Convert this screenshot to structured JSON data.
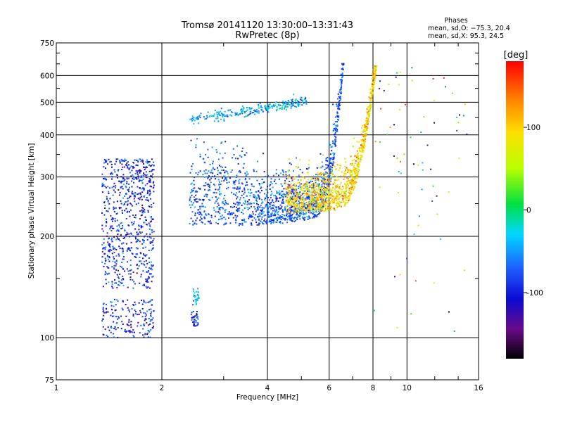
{
  "chart_data": {
    "type": "scatter",
    "title": "Tromsø 20141120 13:30:00–13:31:43",
    "subtitle": "RwPretec (8p)",
    "xlabel": "Frequency [MHz]",
    "ylabel": "Stationary phase Virtual Height [km]",
    "x_scale": "log2",
    "y_scale": "log",
    "xlim": [
      1,
      16
    ],
    "ylim": [
      75,
      750
    ],
    "x_ticks": [
      1,
      2,
      4,
      6,
      8,
      10,
      16
    ],
    "y_ticks": [
      75,
      100,
      200,
      300,
      400,
      500,
      600,
      750
    ],
    "grid": true,
    "colorbar": {
      "label": "[deg]",
      "range": [
        -180,
        180
      ],
      "ticks": [
        100,
        0,
        -100
      ],
      "colors": [
        "#000000",
        "#6a0a8a",
        "#0a0ad0",
        "#1f5bff",
        "#00d8ff",
        "#00e040",
        "#b8ff00",
        "#ffe000",
        "#ff7a00",
        "#ff0000"
      ]
    },
    "stats": {
      "heading": "Phases",
      "line_o": "mean, sd,O: −75.3, 20.4",
      "line_x": "mean, sd,X:  95.3, 24.5",
      "o_mode": {
        "mean": -75.3,
        "sd": 20.4
      },
      "x_mode": {
        "mean": 95.3,
        "sd": 24.5
      }
    },
    "clusters": [
      {
        "name": "low-frequency-patch",
        "x": [
          1.35,
          1.9
        ],
        "y": [
          100,
          400
        ],
        "phase_mean": -95
      },
      {
        "name": "sporadic-trace-500km",
        "x": [
          2.4,
          5.2
        ],
        "y": [
          440,
          520
        ],
        "phase_mean": -40
      },
      {
        "name": "F-trace-O-mode",
        "x": [
          2.4,
          6.5
        ],
        "y": [
          215,
          650
        ],
        "phase_mean": -75
      },
      {
        "name": "F-trace-X-mode",
        "x": [
          4.5,
          8.2
        ],
        "y": [
          235,
          640
        ],
        "phase_mean": 95
      },
      {
        "name": "scattered-high-frequency",
        "x": [
          8,
          15
        ],
        "y": [
          80,
          640
        ],
        "phase_mean": 40
      }
    ]
  }
}
